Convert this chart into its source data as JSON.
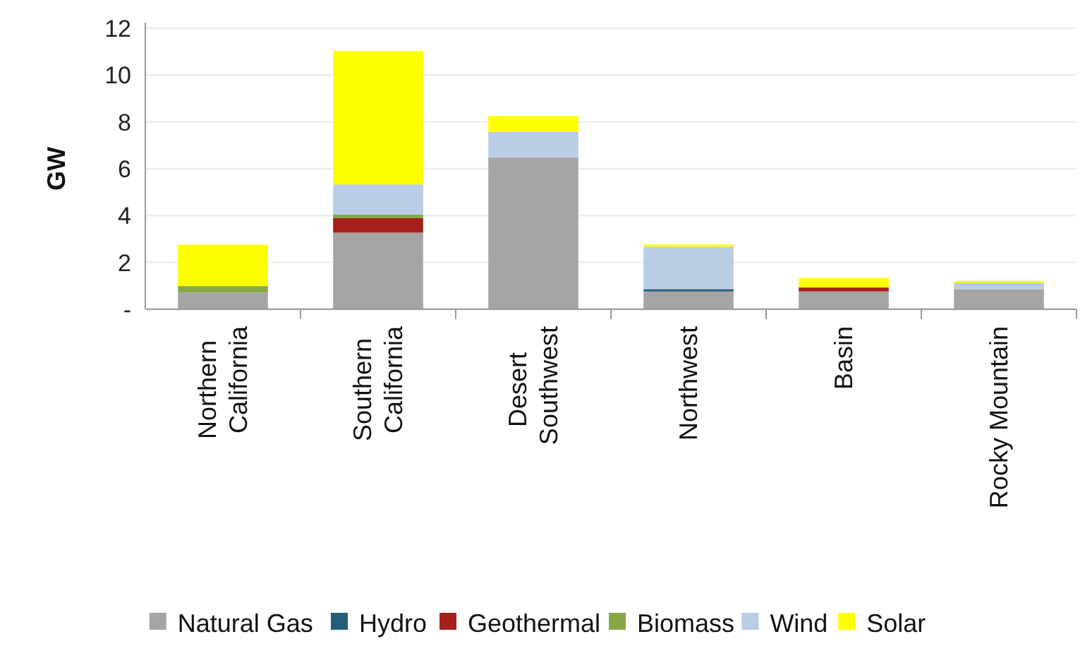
{
  "chart_data": {
    "type": "bar",
    "stacked": true,
    "ylabel": "GW",
    "categories": [
      "Northern\nCalifornia",
      "Southern\nCalifornia",
      "Desert\nSouthwest",
      "Northwest",
      "Basin",
      "Rocky Mountain"
    ],
    "series": [
      {
        "name": "Natural Gas",
        "color": "#a5a5a5",
        "values": [
          0.72,
          3.27,
          6.48,
          0.76,
          0.76,
          0.86
        ]
      },
      {
        "name": "Hydro",
        "color": "#255e79",
        "values": [
          0,
          0,
          0,
          0.1,
          0,
          0
        ]
      },
      {
        "name": "Geothermal",
        "color": "#a5201a",
        "values": [
          0,
          0.62,
          0,
          0,
          0.17,
          0
        ]
      },
      {
        "name": "Biomass",
        "color": "#86a844",
        "values": [
          0.27,
          0.16,
          0,
          0,
          0,
          0
        ]
      },
      {
        "name": "Wind",
        "color": "#b9cde5",
        "values": [
          0,
          1.28,
          1.09,
          1.81,
          0,
          0.27
        ]
      },
      {
        "name": "Solar",
        "color": "#ffff00",
        "values": [
          1.77,
          5.7,
          0.68,
          0.09,
          0.41,
          0.08
        ]
      }
    ],
    "ylim": [
      0,
      12
    ],
    "yticks": [
      {
        "value": 0,
        "label": "-"
      },
      2,
      4,
      6,
      8,
      10,
      12
    ],
    "grid": "y",
    "legend": "bottom"
  }
}
